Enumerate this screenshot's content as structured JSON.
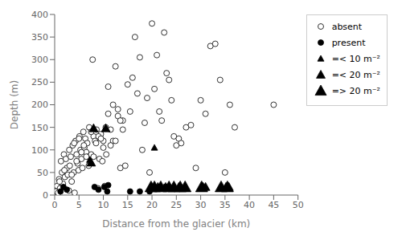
{
  "chart_data": {
    "type": "scatter",
    "xlabel": "Distance from the glacier (km)",
    "ylabel": "Depth (m)",
    "xlim": [
      0,
      50
    ],
    "ylim": [
      0,
      400
    ],
    "xticks": [
      0,
      5,
      10,
      15,
      20,
      25,
      30,
      35,
      40,
      45,
      50
    ],
    "yticks": [
      0,
      50,
      100,
      150,
      200,
      250,
      300,
      350,
      400
    ],
    "grid": false,
    "legend": "right",
    "series": [
      {
        "name": "absent",
        "marker": "circle",
        "color": "white",
        "x": [
          0.3,
          0.5,
          0.7,
          0.9,
          1.1,
          1.3,
          1.5,
          1.7,
          1.9,
          2.1,
          2.3,
          2.5,
          2.7,
          2.9,
          3.1,
          3.3,
          3.5,
          3.7,
          3.9,
          4.1,
          4.3,
          4.5,
          4.7,
          4.9,
          5.1,
          5.3,
          5.5,
          5.7,
          5.9,
          6.1,
          6.3,
          6.5,
          6.7,
          6.9,
          7.1,
          7.3,
          7.5,
          7.8,
          8.0,
          8.3,
          8.6,
          8.9,
          9.2,
          9.5,
          9.8,
          10.0,
          10.3,
          10.6,
          11.0,
          11.5,
          12.0,
          12.5,
          13.0,
          13.5,
          14.0,
          14.5,
          15.0,
          15.5,
          16.0,
          16.5,
          17.0,
          17.5,
          18.0,
          18.5,
          19.0,
          19.5,
          20.0,
          20.5,
          21.0,
          21.5,
          22.0,
          22.5,
          23.0,
          23.5,
          24.0,
          24.5,
          25.0,
          25.5,
          26.0,
          27.0,
          28.0,
          29.0,
          30.0,
          31.0,
          32.0,
          33.0,
          34.0,
          35.0,
          36.0,
          37.0,
          45.0,
          1.0,
          2.0,
          3.0,
          4.0,
          5.0,
          6.0,
          7.0,
          8.0,
          9.0,
          10.0,
          11.0,
          12.0,
          13.0,
          14.0,
          3.5,
          4.5,
          5.5,
          6.5,
          7.5,
          8.5,
          9.5,
          10.5,
          11.5,
          12.5,
          13.5
        ],
        "values": [
          8,
          20,
          5,
          35,
          15,
          75,
          50,
          25,
          90,
          40,
          80,
          60,
          45,
          10,
          65,
          85,
          30,
          110,
          50,
          5,
          120,
          90,
          70,
          55,
          130,
          100,
          80,
          60,
          140,
          105,
          125,
          95,
          115,
          85,
          150,
          70,
          90,
          300,
          130,
          120,
          145,
          15,
          80,
          135,
          75,
          120,
          20,
          90,
          180,
          145,
          120,
          285,
          175,
          60,
          145,
          65,
          245,
          185,
          260,
          350,
          225,
          305,
          100,
          160,
          215,
          50,
          380,
          235,
          310,
          185,
          165,
          360,
          270,
          255,
          210,
          130,
          110,
          125,
          115,
          150,
          155,
          60,
          210,
          180,
          330,
          335,
          255,
          50,
          200,
          150,
          200,
          30,
          55,
          100,
          115,
          125,
          110,
          65,
          85,
          130,
          105,
          240,
          200,
          190,
          165,
          45,
          75,
          95,
          85,
          140,
          115,
          125,
          150,
          110,
          120,
          165
        ]
      },
      {
        "name": "present",
        "marker": "circle",
        "color": "black",
        "x": [
          1.2,
          1.8,
          2.5,
          8.2,
          9.0,
          10.2,
          11.0,
          15.5,
          17.5,
          19.5,
          10.8
        ],
        "values": [
          8,
          18,
          12,
          18,
          12,
          18,
          22,
          8,
          8,
          8,
          8
        ]
      },
      {
        "name": "=< 10 m⁻²",
        "marker": "triangle",
        "color": "black",
        "x": [
          7.2,
          20.5,
          21.5,
          22.5,
          23.0
        ],
        "values": [
          78,
          105,
          18,
          18,
          18
        ]
      },
      {
        "name": "=< 20 m⁻²",
        "marker": "triangle",
        "color": "black",
        "x": [
          7.5,
          8.0,
          10.5,
          21.2,
          22.8,
          25.5,
          30.5,
          31.0,
          35.2,
          35.8
        ],
        "values": [
          72,
          148,
          148,
          18,
          18,
          18,
          18,
          18,
          18,
          18
        ]
      },
      {
        "name": "=> 20 m⁻²",
        "marker": "triangle",
        "color": "black",
        "x": [
          19.8,
          20.5,
          21.8,
          23.5,
          24.5,
          25.8,
          26.8,
          30.2,
          34.2,
          35.5
        ],
        "values": [
          18,
          18,
          18,
          18,
          18,
          18,
          18,
          18,
          18,
          18
        ]
      }
    ]
  }
}
